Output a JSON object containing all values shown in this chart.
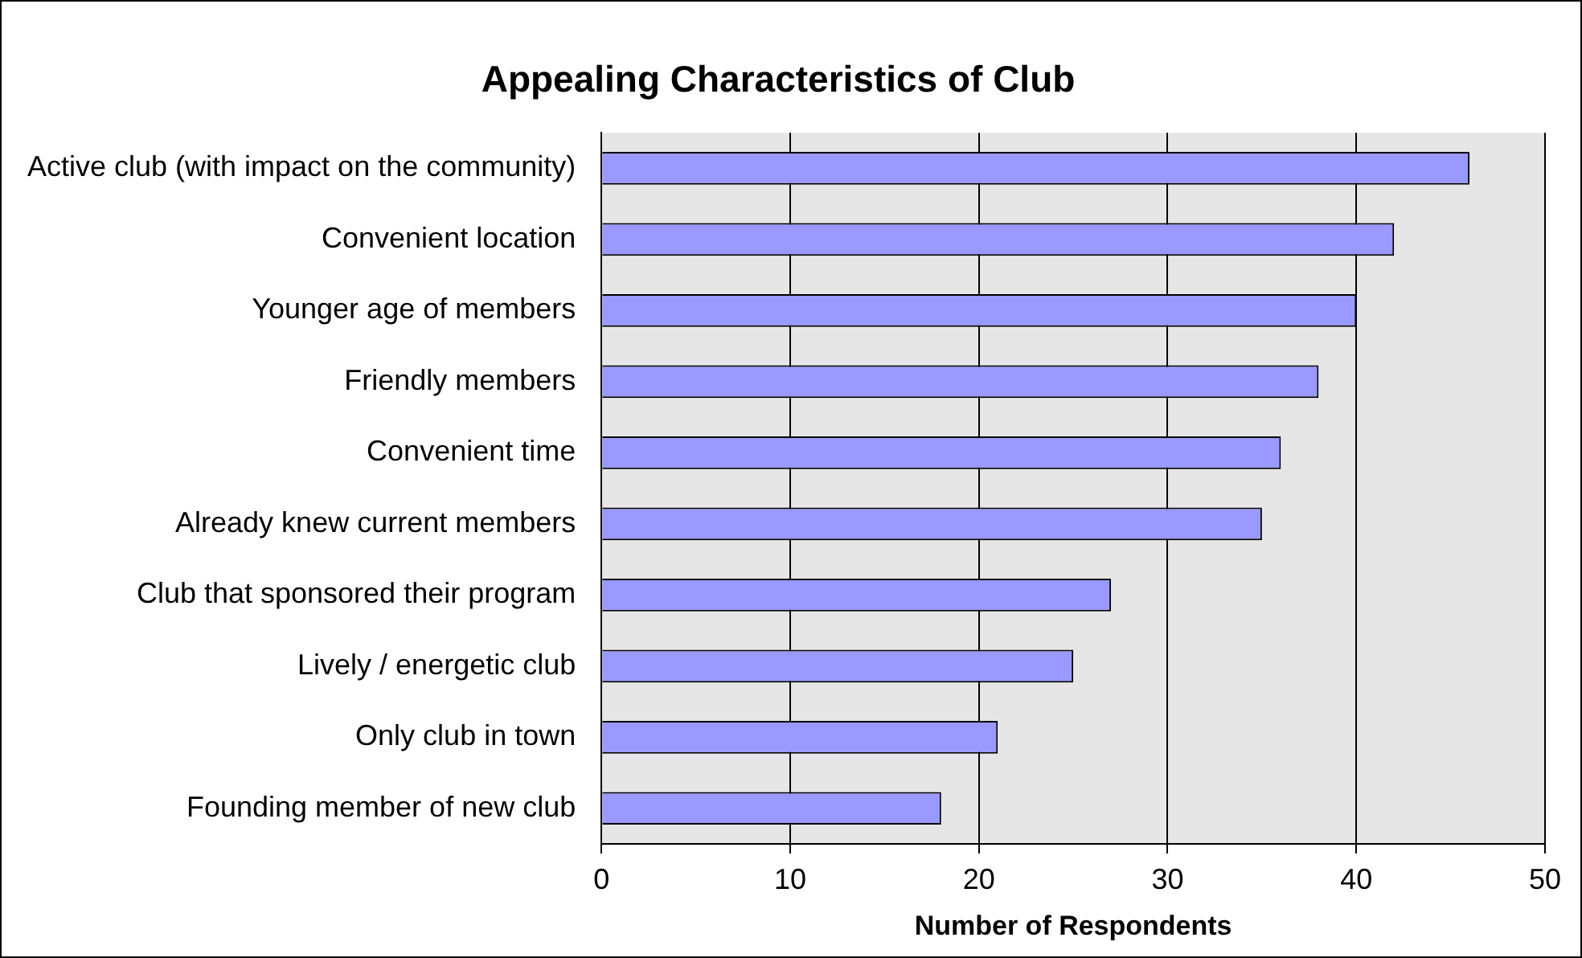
{
  "chart_data": {
    "type": "bar",
    "orientation": "horizontal",
    "title": "Appealing Characteristics of Club",
    "xlabel": "Number of Respondents",
    "categories": [
      "Active club (with impact on the community)",
      "Convenient location",
      "Younger age of members",
      "Friendly members",
      "Convenient time",
      "Already knew current members",
      "Club that sponsored their program",
      "Lively / energetic club",
      "Only club in town",
      "Founding member of new club"
    ],
    "values": [
      46,
      42,
      40,
      38,
      36,
      35,
      27,
      25,
      21,
      18
    ],
    "color": "#9999ff",
    "xlim": [
      0,
      50
    ],
    "xticks": [
      0,
      10,
      20,
      30,
      40,
      50
    ],
    "grid": "x",
    "legend": false
  }
}
